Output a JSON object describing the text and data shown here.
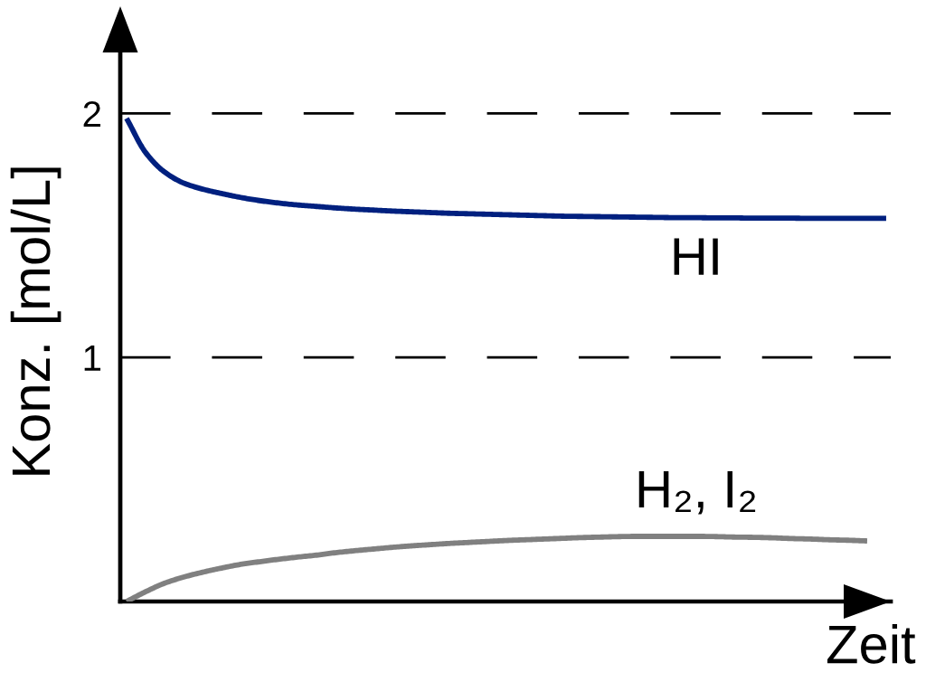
{
  "chart_data": {
    "type": "line",
    "xlabel": "Zeit",
    "ylabel": "Konz. [mol/L]",
    "categories": [
      null,
      null,
      null,
      null,
      null,
      null,
      null,
      null,
      null,
      null,
      null,
      null,
      null,
      null,
      null,
      null,
      null,
      null,
      null,
      null,
      null,
      null,
      null,
      null,
      null,
      null,
      null,
      null,
      null,
      null,
      null,
      null,
      null,
      null,
      null,
      null,
      null,
      null,
      null,
      null,
      null
    ],
    "series": [
      {
        "name": "HI",
        "color": "#00207f",
        "values": [
          1.98,
          1.84,
          1.76,
          1.715,
          1.69,
          1.672,
          1.656,
          1.643,
          1.633,
          1.625,
          1.619,
          1.613,
          1.608,
          1.604,
          1.6,
          1.597,
          1.594,
          1.591,
          1.589,
          1.587,
          1.585,
          1.583,
          1.581,
          1.579,
          1.578,
          1.577,
          1.576,
          1.575,
          1.574,
          1.573,
          1.573,
          1.572,
          1.572,
          1.571,
          1.571,
          1.571,
          1.57,
          1.57,
          1.57,
          1.57,
          1.57
        ]
      },
      {
        "name": "H₂, I₂",
        "color": "#808080",
        "values": [
          0.0,
          0.04,
          0.075,
          0.1,
          0.12,
          0.137,
          0.152,
          0.163,
          0.173,
          0.182,
          0.19,
          0.2,
          0.208,
          0.215,
          0.222,
          0.228,
          0.233,
          0.238,
          0.242,
          0.246,
          0.25,
          0.253,
          0.256,
          0.259,
          0.262,
          0.264,
          0.266,
          0.267,
          0.267,
          0.267,
          0.267,
          0.266,
          0.264,
          0.263,
          0.261,
          0.258,
          0.256,
          0.253,
          0.251,
          0.248,
          null
        ]
      }
    ],
    "ylim": [
      0,
      2.25
    ],
    "yticks": [
      1,
      2
    ],
    "ref_lines": [
      {
        "axis": "y",
        "value": 1,
        "color": "#000000",
        "line_style": "dashed"
      },
      {
        "axis": "y",
        "value": 2,
        "color": "#000000",
        "line_style": "dashed"
      }
    ],
    "tick_labels": "y",
    "line_style": "solid"
  }
}
